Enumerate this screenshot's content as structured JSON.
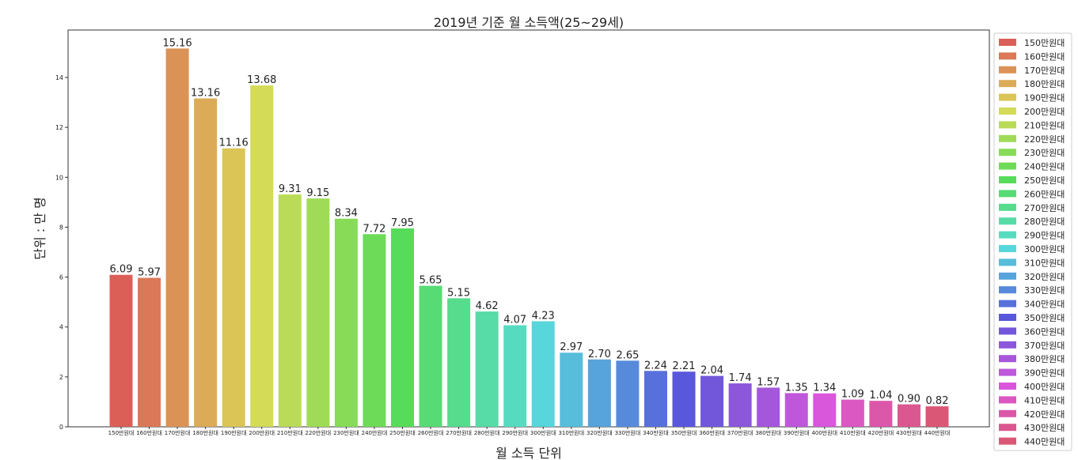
{
  "chart_data": {
    "type": "bar",
    "title": "2019년 기준 월 소득액(25~29세)",
    "xlabel": "월 소득 단위",
    "ylabel": "단위 : 만 명",
    "ylim": [
      0,
      15.9
    ],
    "yticks": [
      0,
      2,
      4,
      6,
      8,
      10,
      12,
      14
    ],
    "grid": false,
    "legend_position": "right",
    "categories": [
      "150만원대",
      "160만원대",
      "170만원대",
      "180만원대",
      "190만원대",
      "200만원대",
      "210만원대",
      "220만원대",
      "230만원대",
      "240만원대",
      "250만원대",
      "260만원대",
      "270만원대",
      "280만원대",
      "290만원대",
      "300만원대",
      "310만원대",
      "320만원대",
      "330만원대",
      "340만원대",
      "350만원대",
      "360만원대",
      "370만원대",
      "380만원대",
      "390만원대",
      "400만원대",
      "410만원대",
      "420만원대",
      "430만원대",
      "440만원대"
    ],
    "values": [
      6.09,
      5.97,
      15.16,
      13.16,
      11.16,
      13.68,
      9.31,
      9.15,
      8.34,
      7.72,
      7.95,
      5.65,
      5.15,
      4.62,
      4.07,
      4.23,
      2.97,
      2.7,
      2.65,
      2.24,
      2.21,
      2.04,
      1.74,
      1.57,
      1.35,
      1.34,
      1.09,
      1.04,
      0.9,
      0.82
    ],
    "value_labels": [
      "6.09",
      "5.97",
      "15.16",
      "13.16",
      "11.16",
      "13.68",
      "9.31",
      "9.15",
      "8.34",
      "7.72",
      "7.95",
      "5.65",
      "5.15",
      "4.62",
      "4.07",
      "4.23",
      "2.97",
      "2.70",
      "2.65",
      "2.24",
      "2.21",
      "2.04",
      "1.74",
      "1.57",
      "1.35",
      "1.34",
      "1.09",
      "1.04",
      "0.90",
      "0.82"
    ],
    "colors": [
      "#db5f57",
      "#db7857",
      "#db9257",
      "#dbab57",
      "#dbc557",
      "#d3db57",
      "#badb57",
      "#a0db57",
      "#87db57",
      "#6ddb57",
      "#57db5a",
      "#57db74",
      "#57db8d",
      "#57dba7",
      "#57dbc0",
      "#57d6db",
      "#57bddb",
      "#57a3db",
      "#578adb",
      "#5770db",
      "#5957db",
      "#7257db",
      "#8c57db",
      "#a557db",
      "#bf57db",
      "#d857db",
      "#db57c2",
      "#db57a9",
      "#db578f",
      "#db5776"
    ]
  }
}
